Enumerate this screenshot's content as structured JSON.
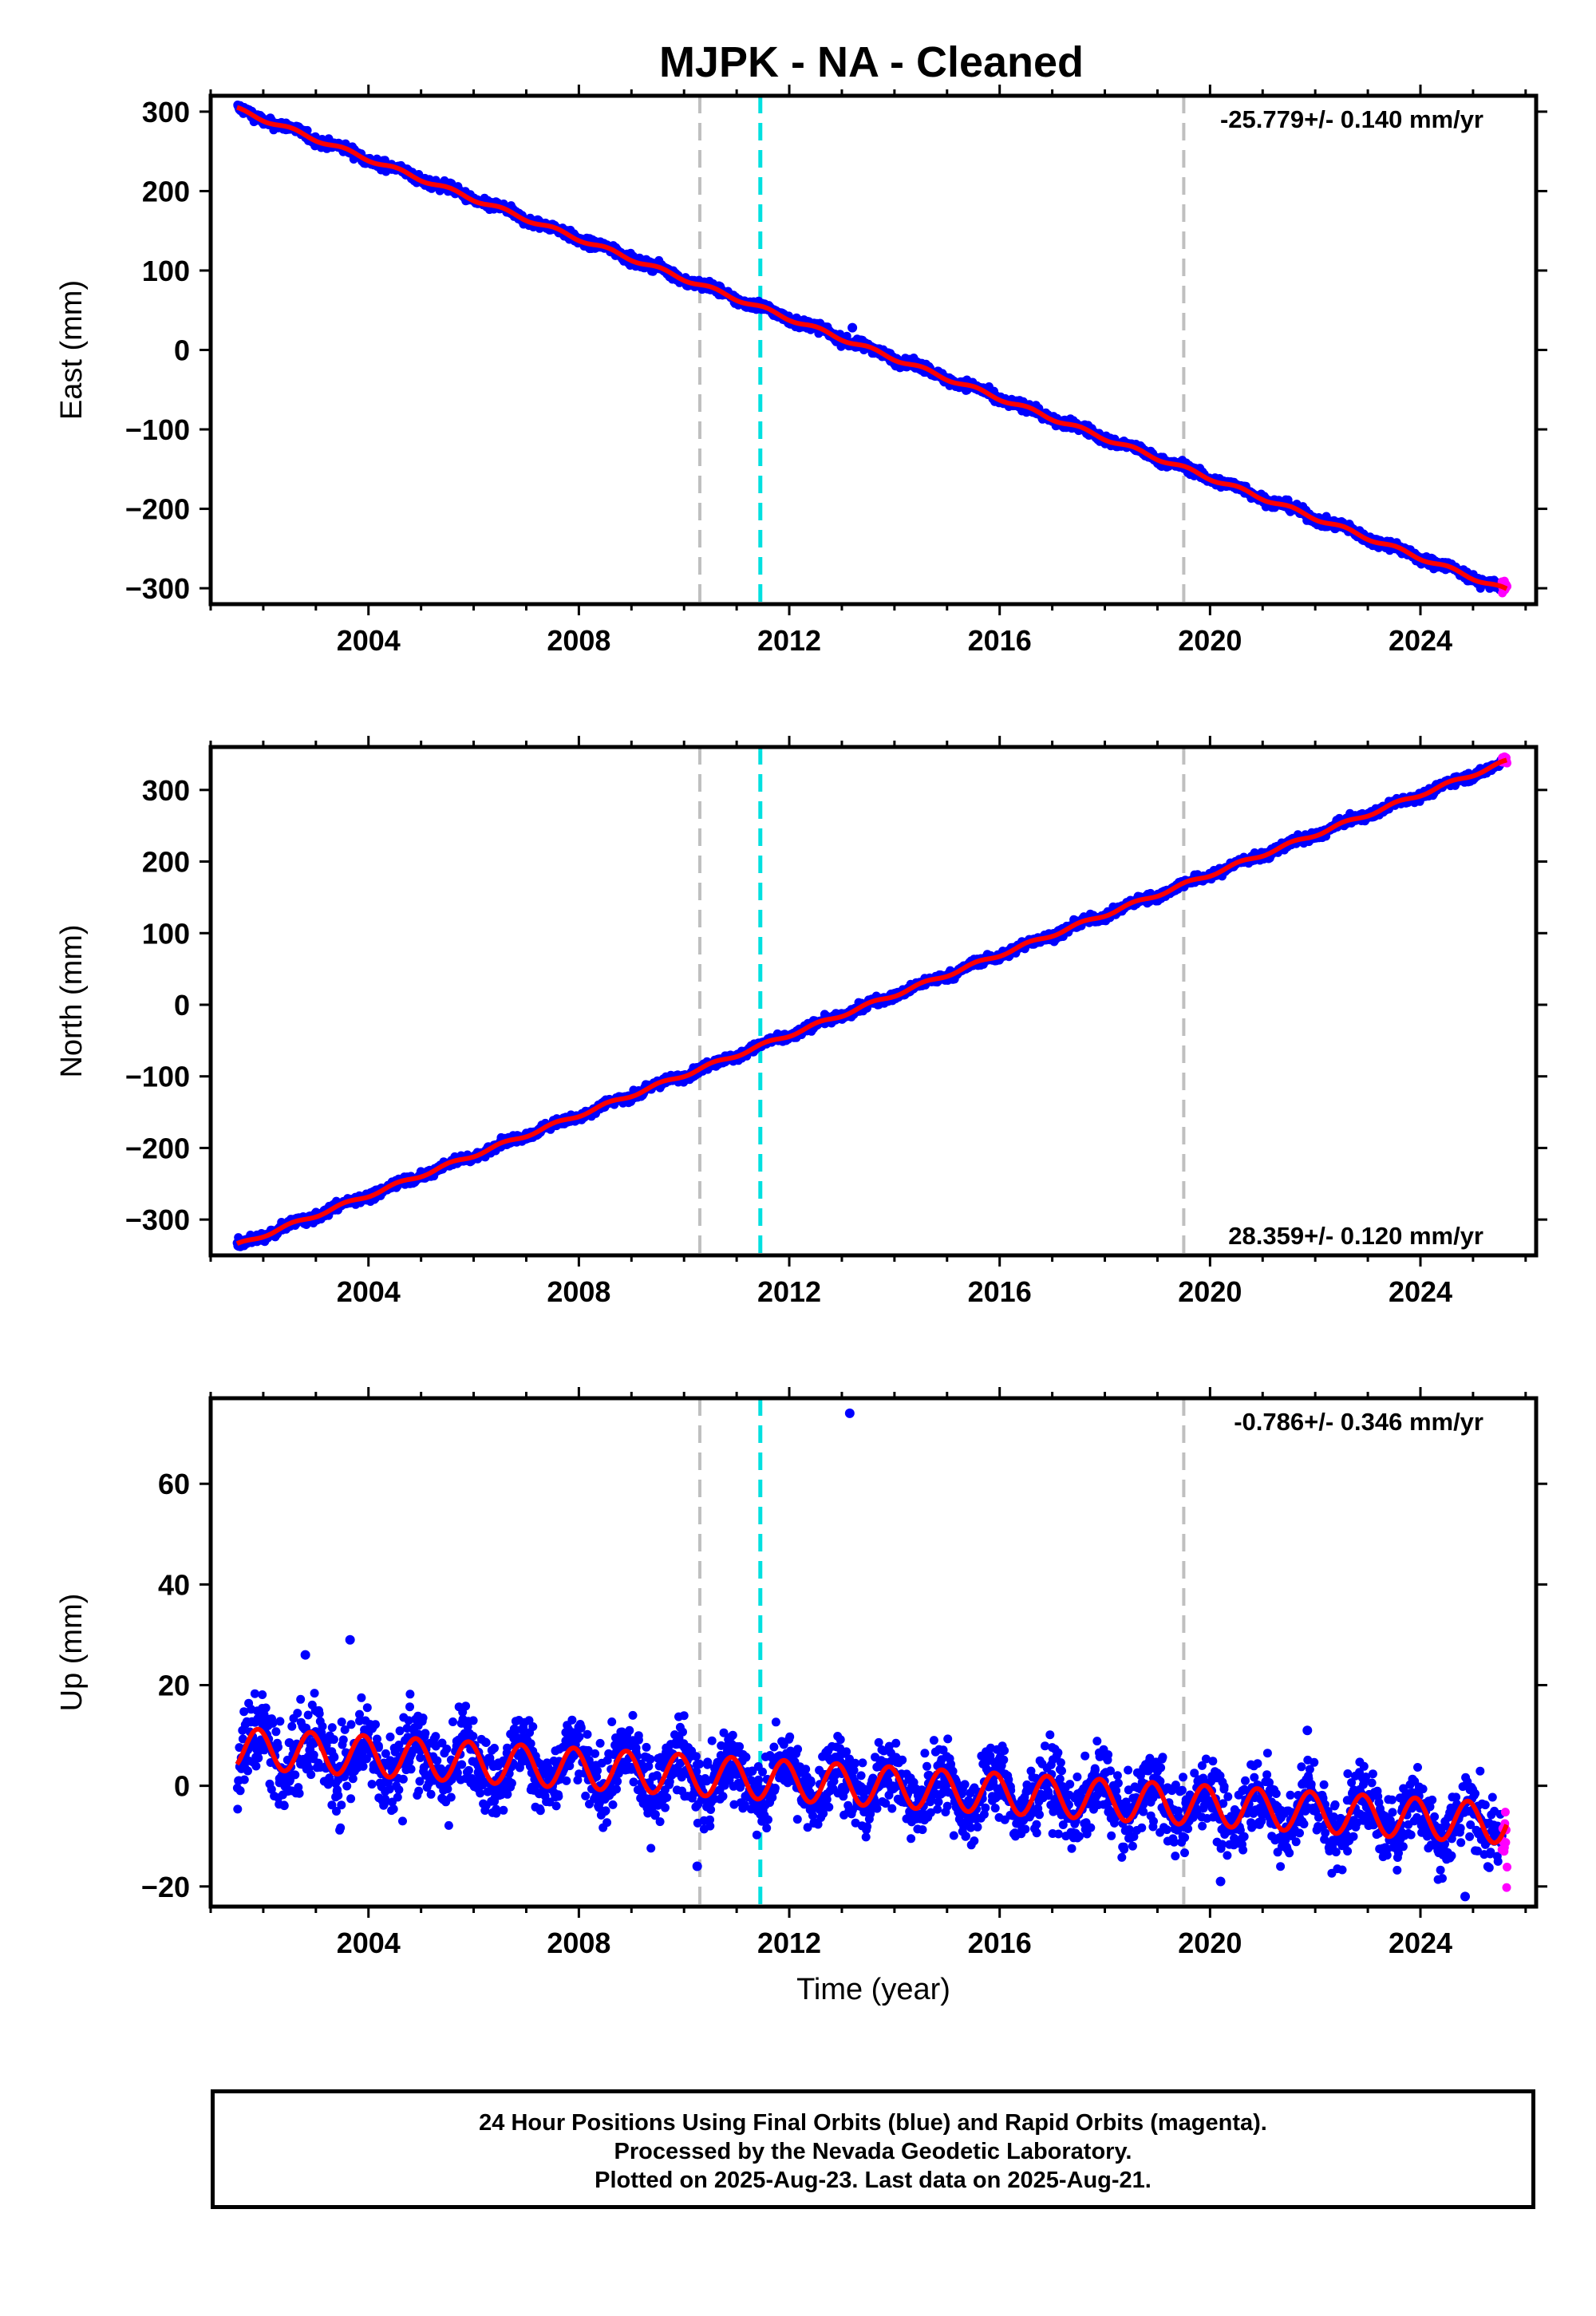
{
  "title": "MJPK  - NA - Cleaned",
  "colors": {
    "final_orbits": "#0000ff",
    "rapid_orbits": "#ff00ff",
    "model": "#ff0000",
    "antenna_change": "#bfbfbf",
    "earthquake": "#00e0e0",
    "frame": "#000000"
  },
  "chart_data": [
    {
      "type": "scatter",
      "name": "east",
      "ylabel": "East (mm)",
      "xlabel": "",
      "xlim": [
        2001.0,
        2026.2
      ],
      "ylim": [
        -320,
        320
      ],
      "xticks": [
        2004,
        2008,
        2012,
        2016,
        2020,
        2024
      ],
      "yticks": [
        -300,
        -200,
        -100,
        0,
        100,
        200,
        300
      ],
      "rate_label": "-25.779+/- 0.140 mm/yr",
      "rate_position": "top-right",
      "start_year": 2001.5,
      "end_year": 2025.65,
      "start_value": 303,
      "end_value": -303,
      "rate_mm_per_yr": -25.779,
      "scatter_mm": 3,
      "wiggle_mm": 2.5,
      "offsets": [
        {
          "year": 2011.45,
          "value": -8
        }
      ],
      "outliers": [
        {
          "year": 2013.2,
          "value": 28
        }
      ],
      "grid": false
    },
    {
      "type": "scatter",
      "name": "north",
      "ylabel": "North (mm)",
      "xlabel": "",
      "xlim": [
        2001.0,
        2026.2
      ],
      "ylim": [
        -350,
        360
      ],
      "xticks": [
        2004,
        2008,
        2012,
        2016,
        2020,
        2024
      ],
      "yticks": [
        -300,
        -200,
        -100,
        0,
        100,
        200,
        300
      ],
      "rate_label": "28.359+/- 0.120 mm/yr",
      "rate_position": "bottom-right",
      "start_year": 2001.5,
      "end_year": 2025.65,
      "start_value": -336,
      "end_value": 340,
      "rate_mm_per_yr": 28.359,
      "scatter_mm": 3,
      "wiggle_mm": 2.5,
      "offsets": [],
      "outliers": [],
      "grid": false
    },
    {
      "type": "scatter",
      "name": "up",
      "ylabel": "Up (mm)",
      "xlabel": "Time (year)",
      "xlim": [
        2001.0,
        2026.2
      ],
      "ylim": [
        -24,
        77
      ],
      "xticks": [
        2004,
        2008,
        2012,
        2016,
        2020,
        2024
      ],
      "yticks": [
        -20,
        0,
        20,
        40,
        60
      ],
      "rate_label": "-0.786+/- 0.346 mm/yr",
      "rate_position": "top-right",
      "start_year": 2001.5,
      "end_year": 2025.65,
      "start_value": 7.5,
      "end_value": -7.5,
      "rate_mm_per_yr": -0.786,
      "offsets": [
        {
          "year": 2010.3,
          "value": -4
        }
      ],
      "seasonal_amplitude_mm": 4,
      "scatter_mm": 3.5,
      "outliers": [
        {
          "year": 2013.15,
          "value": 74
        },
        {
          "year": 2003.65,
          "value": 29
        },
        {
          "year": 2002.8,
          "value": 26
        },
        {
          "year": 2024.85,
          "value": -22
        },
        {
          "year": 2020.2,
          "value": -19
        },
        {
          "year": 2010.25,
          "value": -16
        },
        {
          "year": 2021.85,
          "value": 11
        }
      ],
      "grid": false
    }
  ],
  "vertical_markers": [
    {
      "year": 2010.3,
      "kind": "antenna_change"
    },
    {
      "year": 2011.45,
      "kind": "earthquake"
    },
    {
      "year": 2019.5,
      "kind": "antenna_change"
    }
  ],
  "footer": {
    "line1": "24 Hour Positions Using Final Orbits (blue) and Rapid Orbits (magenta).",
    "line2": "Processed by the Nevada Geodetic Laboratory.",
    "line3": "Plotted on 2025-Aug-23. Last data on 2025-Aug-21."
  }
}
